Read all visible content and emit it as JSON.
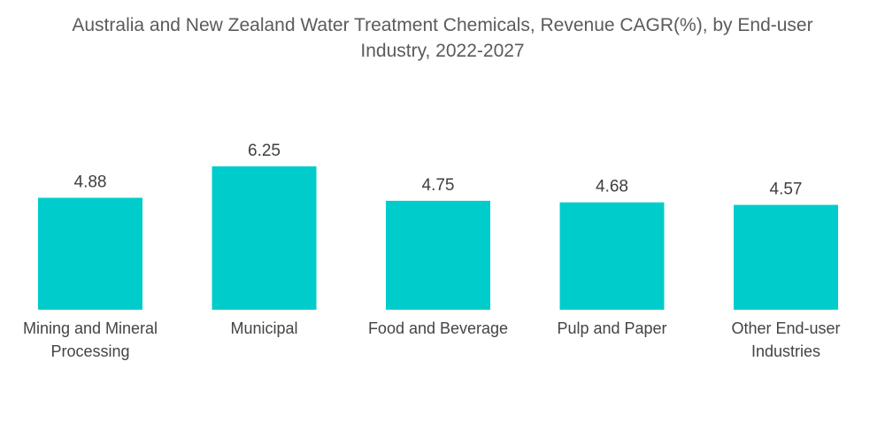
{
  "title_line1": "Australia and New Zealand Water Treatment Chemicals, Revenue CAGR(%), by End-user",
  "title_line2": "Industry, 2022-2027",
  "colors": {
    "bar": "#00CCCC"
  },
  "chart_data": {
    "type": "bar",
    "title": "Australia and New Zealand Water Treatment Chemicals, Revenue CAGR(%), by End-user Industry, 2022-2027",
    "xlabel": "",
    "ylabel": "",
    "categories": [
      "Mining and Mineral Processing",
      "Municipal",
      "Food and Beverage",
      "Pulp and Paper",
      "Other End-user Industries"
    ],
    "category_lines": [
      [
        "Mining and Mineral",
        "Processing"
      ],
      [
        "Municipal"
      ],
      [
        "Food and Beverage"
      ],
      [
        "Pulp and Paper"
      ],
      [
        "Other End-user",
        "Industries"
      ]
    ],
    "values": [
      4.88,
      6.25,
      4.75,
      4.68,
      4.57
    ],
    "value_labels": [
      "4.88",
      "6.25",
      "4.75",
      "4.68",
      "4.57"
    ],
    "ylim": [
      0,
      6.25
    ],
    "grid": false,
    "legend": "none"
  }
}
